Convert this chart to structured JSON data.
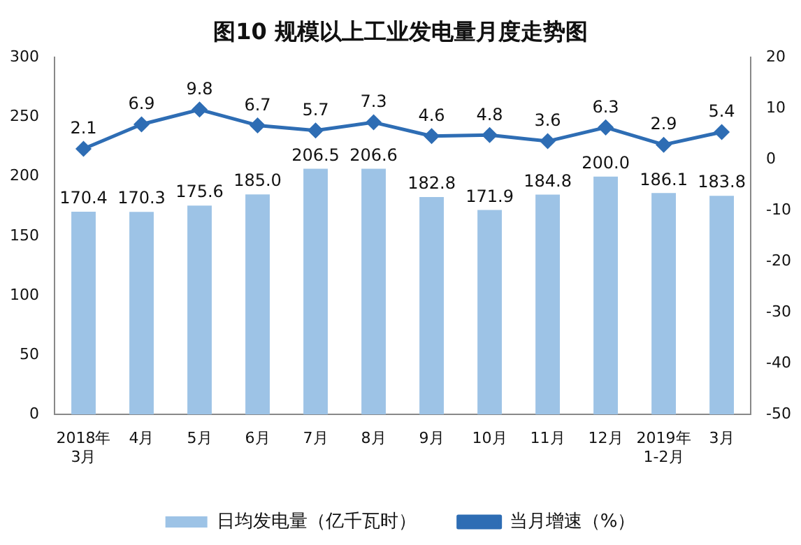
{
  "chart_data": {
    "type": "bar",
    "title": "图10 规模以上工业发电量月度走势图",
    "categories": [
      "2018年3月",
      "4月",
      "5月",
      "6月",
      "7月",
      "8月",
      "9月",
      "10月",
      "11月",
      "12月",
      "2019年1-2月",
      "3月"
    ],
    "series": [
      {
        "name": "日均发电量（亿千瓦时）",
        "color": "#9dc3e6",
        "values": [
          170.4,
          170.3,
          175.6,
          185.0,
          206.5,
          206.6,
          182.8,
          171.9,
          184.8,
          200.0,
          186.1,
          183.8
        ],
        "value_labels": [
          "170.4",
          "170.3",
          "175.6",
          "185.0",
          "206.5",
          "206.6",
          "182.8",
          "171.9",
          "184.8",
          "200.0",
          "186.1",
          "183.8"
        ]
      },
      {
        "name": "当月增速（%）",
        "type": "line",
        "axis": "y2",
        "color": "#2e6db4",
        "marker": "diamond",
        "values": [
          2.1,
          6.9,
          9.8,
          6.7,
          5.7,
          7.3,
          4.6,
          4.8,
          3.6,
          6.3,
          2.9,
          5.4
        ],
        "value_labels": [
          "2.1",
          "6.9",
          "9.8",
          "6.7",
          "5.7",
          "7.3",
          "4.6",
          "4.8",
          "3.6",
          "6.3",
          "2.9",
          "5.4"
        ]
      }
    ],
    "ylim": [
      0,
      300
    ],
    "yticks": [
      0,
      50,
      100,
      150,
      200,
      250,
      300
    ],
    "y2lim": [
      -50,
      20
    ],
    "y2ticks": [
      -50,
      -40,
      -30,
      -20,
      -10,
      0,
      10,
      20
    ],
    "legend": "bottom",
    "grid": false
  }
}
